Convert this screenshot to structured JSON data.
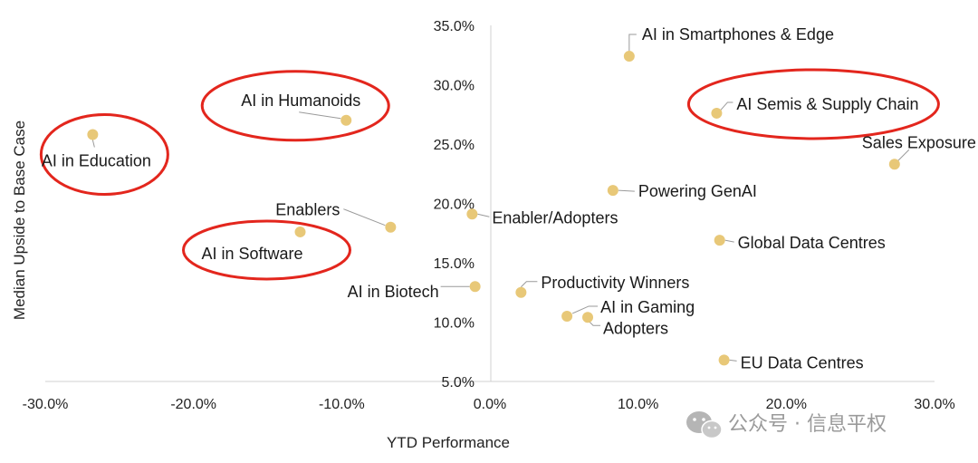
{
  "chart_data": {
    "type": "scatter",
    "title": "",
    "xlabel": "YTD Performance",
    "ylabel": "Median Upside to Base Case",
    "xlim": [
      -30,
      30
    ],
    "ylim": [
      5,
      35
    ],
    "x_ticks": [
      "-30.0%",
      "-20.0%",
      "-10.0%",
      "0.0%",
      "10.0%",
      "20.0%",
      "30.0%"
    ],
    "y_ticks": [
      "35.0%",
      "30.0%",
      "25.0%",
      "20.0%",
      "15.0%",
      "10.0%",
      "5.0%"
    ],
    "grid": false,
    "point_color": "#E8C878",
    "highlight_color": "#E3261D",
    "points": [
      {
        "label": "AI in Smartphones & Edge",
        "x": 9.4,
        "y": 32.4
      },
      {
        "label": "AI Semis & Supply Chain",
        "x": 15.3,
        "y": 27.6
      },
      {
        "label": "Sales Exposure",
        "x": 27.3,
        "y": 23.3
      },
      {
        "label": "Powering GenAI",
        "x": 8.3,
        "y": 21.1
      },
      {
        "label": "Enabler/Adopters",
        "x": -1.2,
        "y": 19.1
      },
      {
        "label": "Global Data Centres",
        "x": 15.5,
        "y": 16.9
      },
      {
        "label": "Productivity Winners",
        "x": 2.1,
        "y": 12.5
      },
      {
        "label": "AI in Biotech",
        "x": -1.0,
        "y": 13.0
      },
      {
        "label": "AI in Gaming",
        "x": 5.2,
        "y": 10.5
      },
      {
        "label": "Adopters",
        "x": 6.6,
        "y": 10.4
      },
      {
        "label": "EU Data Centres",
        "x": 15.8,
        "y": 6.8
      },
      {
        "label": "AI in Humanoids",
        "x": -9.7,
        "y": 27.0
      },
      {
        "label": "AI in Education",
        "x": -26.8,
        "y": 25.8
      },
      {
        "label": "Enablers",
        "x": -6.7,
        "y": 18.0
      },
      {
        "label": "AI in Software",
        "x": -12.8,
        "y": 17.6
      }
    ],
    "highlighted": [
      "AI in Humanoids",
      "AI in Education",
      "AI in Software",
      "AI Semis & Supply Chain"
    ]
  },
  "watermark": {
    "text": "公众号 · 信息平权",
    "icon": "wechat-icon"
  }
}
